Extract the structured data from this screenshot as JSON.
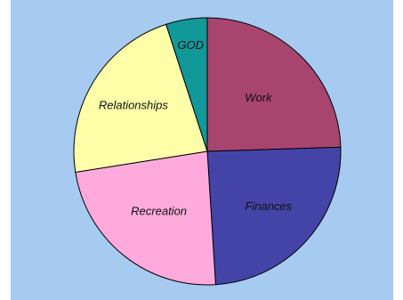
{
  "chart_data": {
    "type": "pie",
    "title": "",
    "start_angle_deg": 0,
    "direction": "clockwise",
    "slices": [
      {
        "label": "Work",
        "value": 24.5,
        "color": "#A8456F"
      },
      {
        "label": "Finances",
        "value": 24.5,
        "color": "#4444A8"
      },
      {
        "label": "Recreation",
        "value": 23.5,
        "color": "#FFAADD"
      },
      {
        "label": "Relationships",
        "value": 22.5,
        "color": "#FFFFAA"
      },
      {
        "label": "GOD",
        "value": 5,
        "color": "#119999"
      }
    ],
    "background_color": "#A6CAF0",
    "edge_color": "#000000",
    "legend": "none",
    "grid": false
  }
}
